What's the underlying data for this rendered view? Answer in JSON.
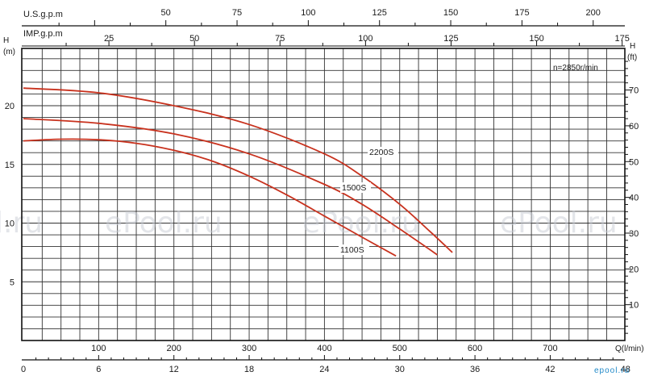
{
  "chart_data": {
    "type": "line",
    "speed_label": "n=2850r/min",
    "axes": {
      "left": {
        "unit": "H\n(m)",
        "ticks": [
          5,
          10,
          15,
          20
        ],
        "range": [
          0,
          24
        ]
      },
      "right": {
        "unit": "H\n(ft)",
        "ticks": [
          10,
          20,
          30,
          40,
          50,
          60,
          70
        ]
      },
      "bottom": {
        "unit": "Q(l/min)",
        "ticks": [
          100,
          200,
          300,
          400,
          500,
          600,
          700
        ],
        "range": [
          0,
          800
        ]
      },
      "bottom2": {
        "ticks": [
          0,
          6,
          12,
          18,
          24,
          30,
          36,
          42,
          48
        ]
      },
      "top_usgpm": {
        "label": "U.S.g.p.m",
        "ticks": [
          50,
          75,
          100,
          125,
          150,
          175,
          200
        ]
      },
      "top_impgpm": {
        "label": "IMP.g.p.m",
        "ticks": [
          25,
          50,
          75,
          100,
          125,
          150,
          175
        ]
      }
    },
    "series": [
      {
        "name": "2200S",
        "x": [
          0,
          100,
          200,
          300,
          400,
          450,
          500,
          540,
          570
        ],
        "y": [
          21.5,
          21.1,
          20.0,
          18.4,
          15.9,
          14.0,
          11.6,
          9.3,
          7.5
        ]
      },
      {
        "name": "1500S",
        "x": [
          0,
          100,
          200,
          300,
          400,
          450,
          500,
          550
        ],
        "y": [
          18.9,
          18.5,
          17.6,
          15.9,
          13.3,
          11.6,
          9.5,
          7.3
        ]
      },
      {
        "name": "1100S",
        "x": [
          0,
          50,
          100,
          150,
          200,
          250,
          300,
          350,
          400,
          450,
          495
        ],
        "y": [
          17.0,
          17.15,
          17.1,
          16.8,
          16.2,
          15.3,
          14.0,
          12.4,
          10.6,
          8.8,
          7.2
        ]
      }
    ],
    "grid": true
  },
  "watermark": {
    "text": "ePool.ru",
    "left_text": "l.ru"
  },
  "logo": "epool.ru"
}
